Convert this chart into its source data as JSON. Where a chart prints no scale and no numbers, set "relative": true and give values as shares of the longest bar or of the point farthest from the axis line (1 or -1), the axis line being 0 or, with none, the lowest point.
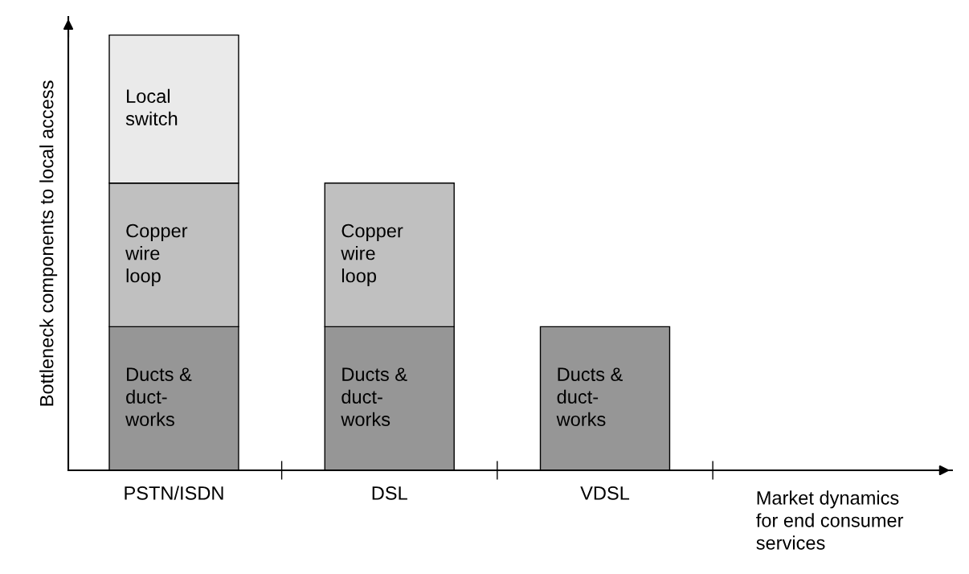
{
  "chart_data": {
    "type": "bar",
    "stacked": true,
    "relative": true,
    "ylabel": "Bottleneck components to local access",
    "xlabel": "Market dynamics\nfor end consumer\nservices",
    "categories": [
      "PSTN/ISDN",
      "DSL",
      "VDSL"
    ],
    "series": [
      {
        "name": "Ducts &\nduct-\nworks",
        "color": "#969696",
        "values": [
          0.33,
          0.33,
          0.33
        ]
      },
      {
        "name": "Copper\nwire\nloop",
        "color": "#c0c0c0",
        "values": [
          0.33,
          0.33,
          null
        ]
      },
      {
        "name": "Local\nswitch",
        "color": "#eaeaea",
        "values": [
          0.34,
          null,
          null
        ]
      }
    ],
    "legend": false,
    "grid": false
  }
}
